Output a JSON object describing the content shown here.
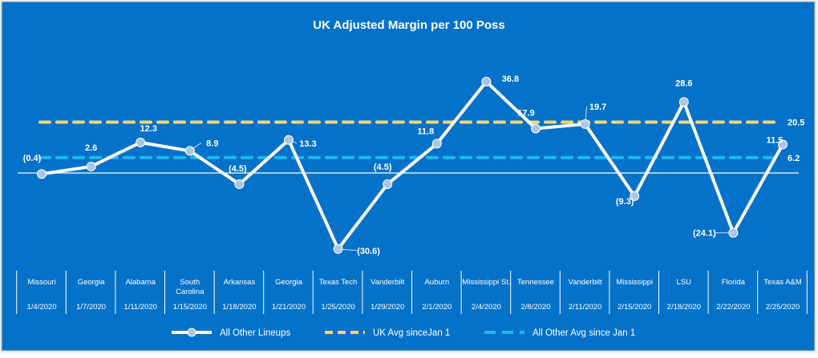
{
  "chart_data": {
    "type": "line",
    "title": "UK Adjusted Margin per 100 Poss",
    "xlabel": "",
    "ylabel": "",
    "ylim": [
      -40,
      45
    ],
    "grid": false,
    "legend_position": "bottom",
    "categories": [
      {
        "opponent": "Missouri",
        "date": "1/4/2020"
      },
      {
        "opponent": "Georgia",
        "date": "1/7/2020"
      },
      {
        "opponent": "Alabama",
        "date": "1/11/2020"
      },
      {
        "opponent": "South Carolina",
        "date": "1/15/2020"
      },
      {
        "opponent": "Arkansas",
        "date": "1/18/2020"
      },
      {
        "opponent": "Georgia",
        "date": "1/21/2020"
      },
      {
        "opponent": "Texas Tech",
        "date": "1/25/2020"
      },
      {
        "opponent": "Vanderbilt",
        "date": "1/29/2020"
      },
      {
        "opponent": "Auburn",
        "date": "2/1/2020"
      },
      {
        "opponent": "Mississippi St.",
        "date": "2/4/2020"
      },
      {
        "opponent": "Tennessee",
        "date": "2/8/2020"
      },
      {
        "opponent": "Vanderbilt",
        "date": "2/11/2020"
      },
      {
        "opponent": "Mississippi",
        "date": "2/15/2020"
      },
      {
        "opponent": "LSU",
        "date": "2/18/2020"
      },
      {
        "opponent": "Florida",
        "date": "2/22/2020"
      },
      {
        "opponent": "Texas A&M",
        "date": "2/25/2020"
      }
    ],
    "series": [
      {
        "name": "All Other Lineups",
        "color": "#ffffff",
        "values": [
          -0.4,
          2.6,
          12.3,
          8.9,
          -4.5,
          13.3,
          -30.6,
          -4.5,
          11.8,
          36.8,
          17.9,
          19.7,
          -9.3,
          28.6,
          -24.1,
          11.5
        ],
        "labels": [
          "(0.4)",
          "2.6",
          "12.3",
          "8.9",
          "(4.5)",
          "13.3",
          "(30.6)",
          "(4.5)",
          "11.8",
          "36.8",
          "17.9",
          "19.7",
          "(9.3)",
          "28.6",
          "(24.1)",
          "11.5"
        ]
      }
    ],
    "reference_lines": [
      {
        "name": "UK Avg sinceJan 1",
        "value": 20.5,
        "label": "20.5",
        "color": "#f2d67a"
      },
      {
        "name": "All Other Avg since Jan 1",
        "value": 6.2,
        "label": "6.2",
        "color": "#1fb8f2"
      }
    ]
  }
}
